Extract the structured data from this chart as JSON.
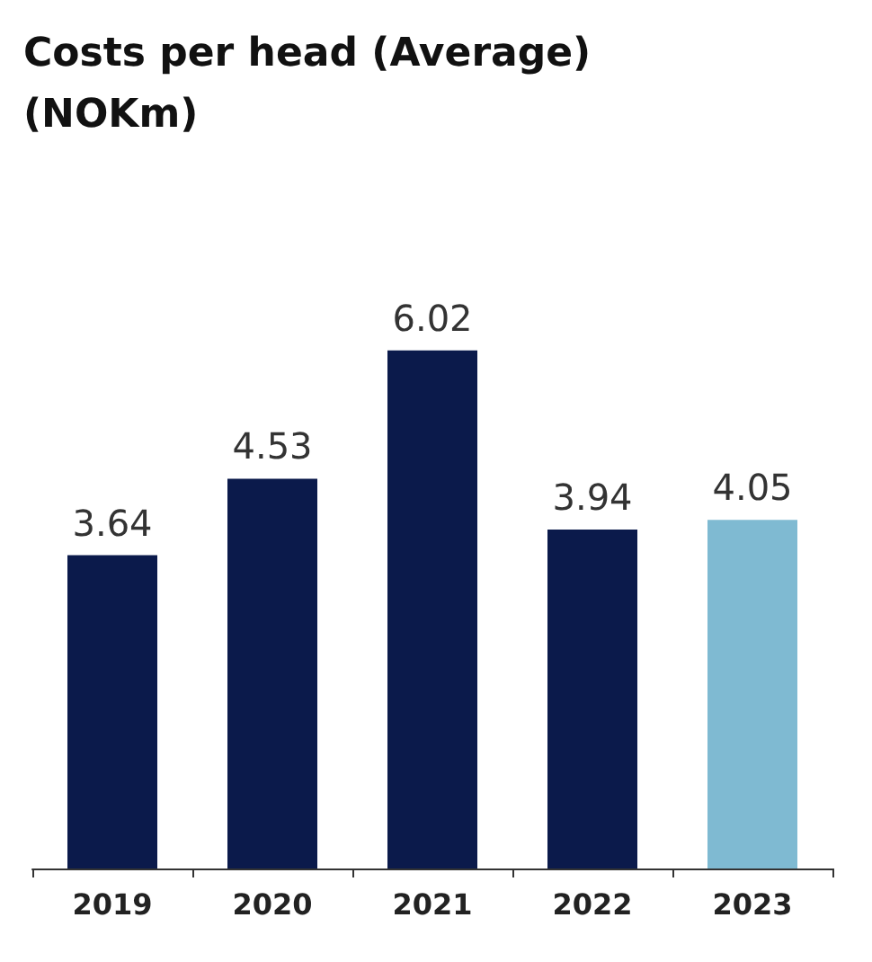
{
  "chart_data": {
    "type": "bar",
    "title": "Costs per head (Average) (NOKm)",
    "categories": [
      "2019",
      "2020",
      "2021",
      "2022",
      "2023"
    ],
    "values": [
      3.64,
      4.53,
      6.02,
      3.94,
      4.05
    ],
    "colors": [
      "#0b1a4b",
      "#0b1a4b",
      "#0b1a4b",
      "#0b1a4b",
      "#7fbad2"
    ],
    "data_labels": true
  }
}
